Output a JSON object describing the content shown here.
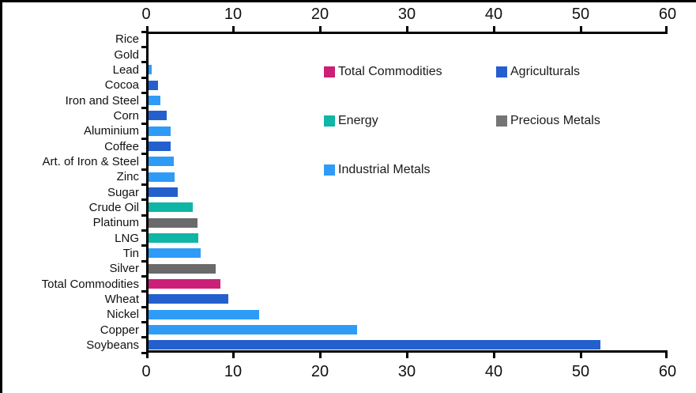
{
  "chart_data": {
    "type": "bar",
    "orientation": "horizontal",
    "title": "",
    "xlabel": "",
    "ylabel": "",
    "xlim": [
      0,
      60
    ],
    "x_ticks": [
      0,
      10,
      20,
      30,
      40,
      50,
      60
    ],
    "x_axis_mirrored_top_and_bottom": true,
    "grid": false,
    "categories": [
      "Rice",
      "Gold",
      "Lead",
      "Cocoa",
      "Iron and Steel",
      "Corn",
      "Aluminium",
      "Coffee",
      "Art. of Iron & Steel",
      "Zinc",
      "Sugar",
      "Crude Oil",
      "Platinum",
      "LNG",
      "Tin",
      "Silver",
      "Total Commodities",
      "Wheat",
      "Nickel",
      "Copper",
      "Soybeans"
    ],
    "values": [
      0,
      0,
      0.4,
      1.1,
      1.4,
      2.1,
      2.5,
      2.5,
      2.9,
      3.0,
      3.4,
      5.1,
      5.6,
      5.7,
      6.0,
      7.7,
      8.3,
      9.2,
      12.7,
      24.0,
      52.0
    ],
    "category_groups": [
      "Agriculturals",
      "Precious Metals",
      "Industrial Metals",
      "Agriculturals",
      "Industrial Metals",
      "Agriculturals",
      "Industrial Metals",
      "Agriculturals",
      "Industrial Metals",
      "Industrial Metals",
      "Agriculturals",
      "Energy",
      "Precious Metals",
      "Energy",
      "Industrial Metals",
      "Precious Metals",
      "Total Commodities",
      "Agriculturals",
      "Industrial Metals",
      "Industrial Metals",
      "Agriculturals"
    ],
    "legend": [
      {
        "label": "Total Commodities",
        "color": "#CC1F77"
      },
      {
        "label": "Agriculturals",
        "color": "#2360CD"
      },
      {
        "label": "Energy",
        "color": "#0FB5A5"
      },
      {
        "label": "Precious Metals",
        "color": "#757575"
      },
      {
        "label": "Industrial Metals",
        "color": "#2E9BF7"
      }
    ],
    "legend_position": "inside-upper-right"
  },
  "colors": {
    "axis": "#000000",
    "text": "#111111",
    "background": "#ffffff",
    "bar_precious_metals": "#6A6A6A"
  }
}
